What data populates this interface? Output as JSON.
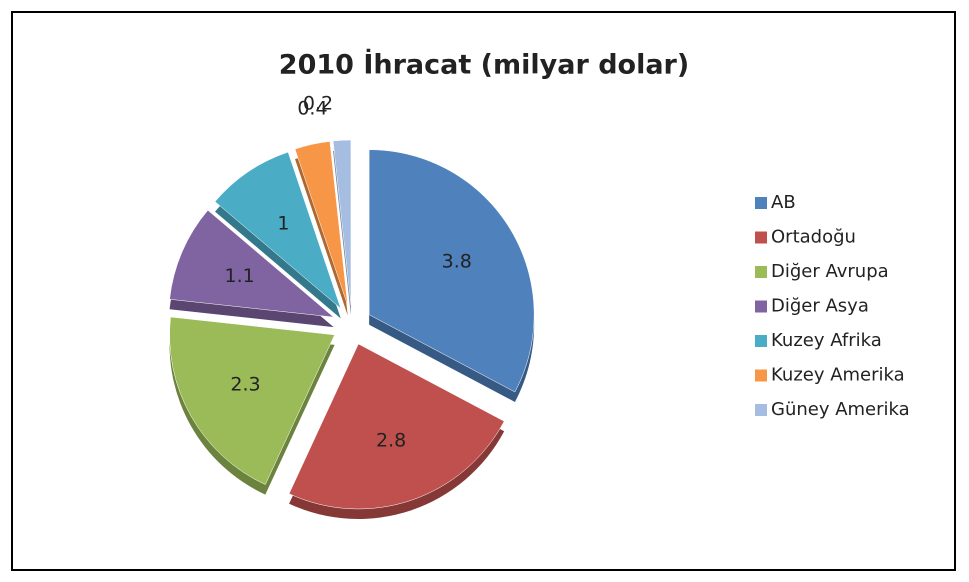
{
  "chart_data": {
    "type": "pie",
    "title": "2010 İhracat (milyar dolar)",
    "categories": [
      "AB",
      "Ortadoğu",
      "Diğer Avrupa",
      "Diğer Asya",
      "Kuzey Afrika",
      "Kuzey Amerika",
      "Güney Amerika"
    ],
    "values": [
      3.8,
      2.8,
      2.3,
      1.1,
      1,
      0.4,
      0.2
    ],
    "colors": [
      "#4f81bd",
      "#c0504d",
      "#9bbb59",
      "#8064a2",
      "#4bacc6",
      "#f79646",
      "#a5bde0"
    ],
    "legend": "right"
  }
}
